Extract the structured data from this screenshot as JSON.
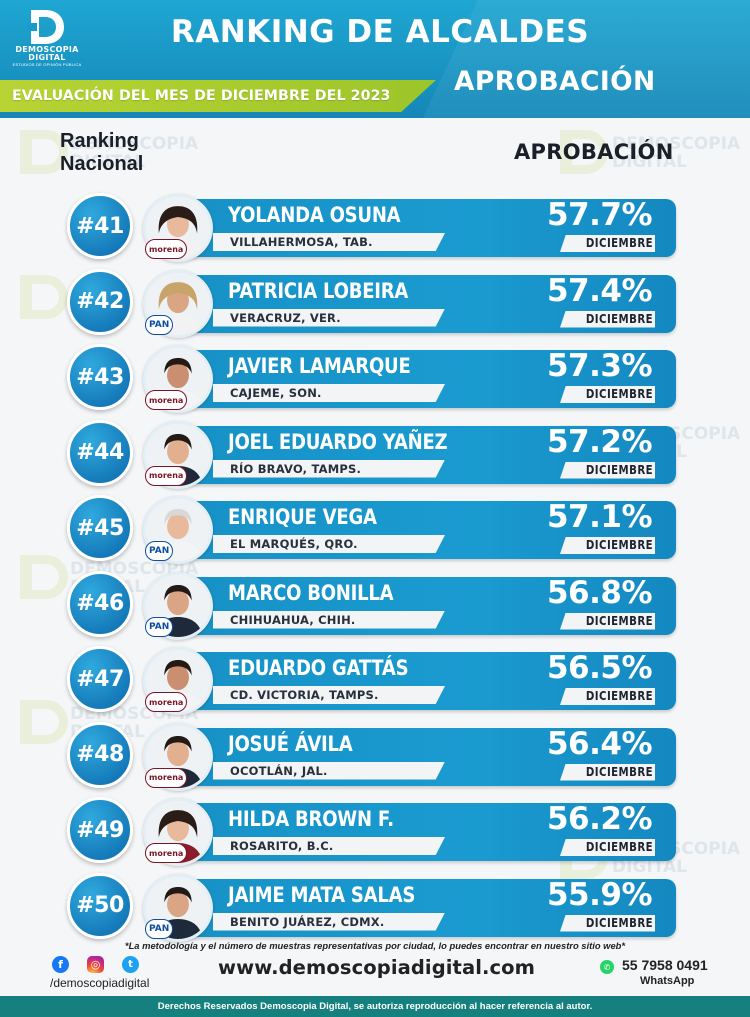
{
  "brand": {
    "name": "DEMOSCOPIA\nDIGITAL",
    "tagline": "ESTUDIOS DE OPINIÓN PÚBLICA",
    "color_primary": "#1a9bd0",
    "color_accent": "#9cc52a"
  },
  "header": {
    "title": "RANKING DE ALCALDES",
    "evaluation": "EVALUACIÓN DEL MES DE DICIEMBRE DEL 2023",
    "subtitle": "APROBACIÓN"
  },
  "labels": {
    "ranking": "Ranking\nNacional",
    "approval": "APROBACIÓN"
  },
  "watermark": "DEMOSCOPIA\nDIGITAL",
  "rows": [
    {
      "rank": "#41",
      "name": "YOLANDA OSUNA",
      "city": "VILLAHERMOSA, TAB.",
      "approval": "57.7%",
      "month": "DICIEMBRE",
      "party": "morena",
      "party_label": "morena",
      "gender": "f"
    },
    {
      "rank": "#42",
      "name": "PATRICIA LOBEIRA",
      "city": "VERACRUZ, VER.",
      "approval": "57.4%",
      "month": "DICIEMBRE",
      "party": "pan",
      "party_label": "PAN",
      "gender": "f"
    },
    {
      "rank": "#43",
      "name": "JAVIER LAMARQUE",
      "city": "CAJEME, SON.",
      "approval": "57.3%",
      "month": "DICIEMBRE",
      "party": "morena",
      "party_label": "morena",
      "gender": "m"
    },
    {
      "rank": "#44",
      "name": "JOEL EDUARDO YAÑEZ",
      "city": "RÍO BRAVO, TAMPS.",
      "approval": "57.2%",
      "month": "DICIEMBRE",
      "party": "morena",
      "party_label": "morena",
      "gender": "m"
    },
    {
      "rank": "#45",
      "name": "ENRIQUE VEGA",
      "city": "EL MARQUÉS, QRO.",
      "approval": "57.1%",
      "month": "DICIEMBRE",
      "party": "pan",
      "party_label": "PAN",
      "gender": "m"
    },
    {
      "rank": "#46",
      "name": "MARCO BONILLA",
      "city": "CHIHUAHUA, CHIH.",
      "approval": "56.8%",
      "month": "DICIEMBRE",
      "party": "pan",
      "party_label": "PAN",
      "gender": "m"
    },
    {
      "rank": "#47",
      "name": "EDUARDO GATTÁS",
      "city": "CD. VICTORIA, TAMPS.",
      "approval": "56.5%",
      "month": "DICIEMBRE",
      "party": "morena",
      "party_label": "morena",
      "gender": "m"
    },
    {
      "rank": "#48",
      "name": "JOSUÉ ÁVILA",
      "city": "OCOTLÁN, JAL.",
      "approval": "56.4%",
      "month": "DICIEMBRE",
      "party": "morena",
      "party_label": "morena",
      "gender": "m"
    },
    {
      "rank": "#49",
      "name": "HILDA BROWN F.",
      "city": "ROSARITO, B.C.",
      "approval": "56.2%",
      "month": "DICIEMBRE",
      "party": "morena",
      "party_label": "morena",
      "gender": "f"
    },
    {
      "rank": "#50",
      "name": "JAIME MATA SALAS",
      "city": "BENITO JUÁREZ, CDMX.",
      "approval": "55.9%",
      "month": "DICIEMBRE",
      "party": "pan",
      "party_label": "PAN",
      "gender": "m"
    }
  ],
  "footer": {
    "note": "*La metodología y el número de muestras representativas por ciudad, lo puedes encontrar en nuestro sitio web*",
    "handle": "/demoscopiadigital",
    "website": "www.demoscopiadigital.com",
    "phone": "55 7958 0491",
    "whatsapp": "WhatsApp",
    "copyright": "Derechos Reservados Demoscopia Digital, se autoriza reproducción al hacer referencia al autor."
  }
}
